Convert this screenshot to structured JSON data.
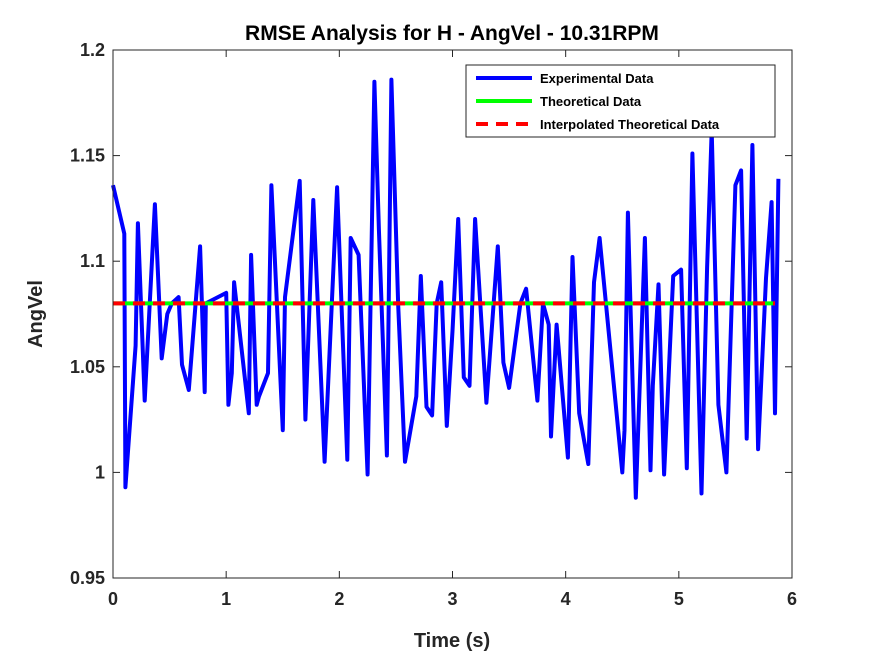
{
  "chart_data": {
    "type": "line",
    "title": "RMSE Analysis for H - AngVel - 10.31RPM",
    "xlabel": "Time (s)",
    "ylabel": "AngVel",
    "xlim": [
      0,
      6
    ],
    "ylim": [
      0.95,
      1.2
    ],
    "xticks": [
      0,
      1,
      2,
      3,
      4,
      5,
      6
    ],
    "xtick_labels": [
      "0",
      "1",
      "2",
      "3",
      "4",
      "5",
      "6"
    ],
    "yticks": [
      0.95,
      1.0,
      1.05,
      1.1,
      1.15,
      1.2
    ],
    "ytick_labels": [
      "0.95",
      "1",
      "1.05",
      "1.1",
      "1.15",
      "1.2"
    ],
    "grid": false,
    "legend_position": "top-right",
    "series": [
      {
        "name": "Experimental Data",
        "color": "#0000ff",
        "style": "solid",
        "x": [
          0.0,
          0.1,
          0.11,
          0.2,
          0.22,
          0.28,
          0.37,
          0.43,
          0.48,
          0.52,
          0.58,
          0.61,
          0.67,
          0.77,
          0.81,
          0.82,
          1.0,
          1.02,
          1.05,
          1.07,
          1.2,
          1.22,
          1.27,
          1.29,
          1.37,
          1.4,
          1.5,
          1.52,
          1.6,
          1.65,
          1.7,
          1.77,
          1.87,
          1.98,
          2.07,
          2.1,
          2.17,
          2.25,
          2.31,
          2.35,
          2.42,
          2.46,
          2.52,
          2.58,
          2.68,
          2.72,
          2.77,
          2.82,
          2.86,
          2.9,
          2.95,
          3.0,
          3.05,
          3.1,
          3.15,
          3.2,
          3.25,
          3.3,
          3.4,
          3.45,
          3.5,
          3.6,
          3.65,
          3.75,
          3.8,
          3.85,
          3.87,
          3.92,
          4.02,
          4.06,
          4.12,
          4.2,
          4.25,
          4.3,
          4.5,
          4.52,
          4.55,
          4.62,
          4.7,
          4.75,
          4.77,
          4.82,
          4.87,
          4.95,
          5.02,
          5.07,
          5.12,
          5.2,
          5.25,
          5.29,
          5.35,
          5.42,
          5.5,
          5.55,
          5.6,
          5.65,
          5.7,
          5.77,
          5.82,
          5.85,
          5.88
        ],
        "y": [
          1.136,
          1.113,
          0.993,
          1.06,
          1.118,
          1.034,
          1.127,
          1.054,
          1.075,
          1.08,
          1.083,
          1.051,
          1.039,
          1.107,
          1.038,
          1.08,
          1.085,
          1.032,
          1.047,
          1.09,
          1.028,
          1.103,
          1.032,
          1.036,
          1.047,
          1.136,
          1.02,
          1.083,
          1.117,
          1.138,
          1.025,
          1.129,
          1.005,
          1.135,
          1.006,
          1.111,
          1.103,
          0.999,
          1.185,
          1.115,
          1.008,
          1.186,
          1.079,
          1.005,
          1.036,
          1.093,
          1.031,
          1.027,
          1.08,
          1.09,
          1.022,
          1.067,
          1.12,
          1.045,
          1.041,
          1.12,
          1.076,
          1.033,
          1.107,
          1.052,
          1.04,
          1.08,
          1.087,
          1.034,
          1.08,
          1.07,
          1.017,
          1.07,
          1.007,
          1.102,
          1.028,
          1.004,
          1.09,
          1.111,
          1.0,
          1.02,
          1.123,
          0.988,
          1.111,
          1.001,
          1.041,
          1.089,
          0.999,
          1.093,
          1.096,
          1.002,
          1.151,
          0.99,
          1.097,
          1.162,
          1.032,
          1.0,
          1.136,
          1.143,
          1.016,
          1.155,
          1.011,
          1.092,
          1.128,
          1.028,
          1.139
        ]
      },
      {
        "name": "Theoretical Data",
        "color": "#00ff00",
        "style": "solid",
        "x": [
          0.0,
          5.85
        ],
        "y": [
          1.08,
          1.08
        ]
      },
      {
        "name": "Interpolated Theoretical Data",
        "color": "#ff0000",
        "style": "dashed",
        "x": [
          0.0,
          5.85
        ],
        "y": [
          1.08,
          1.08
        ]
      }
    ]
  }
}
